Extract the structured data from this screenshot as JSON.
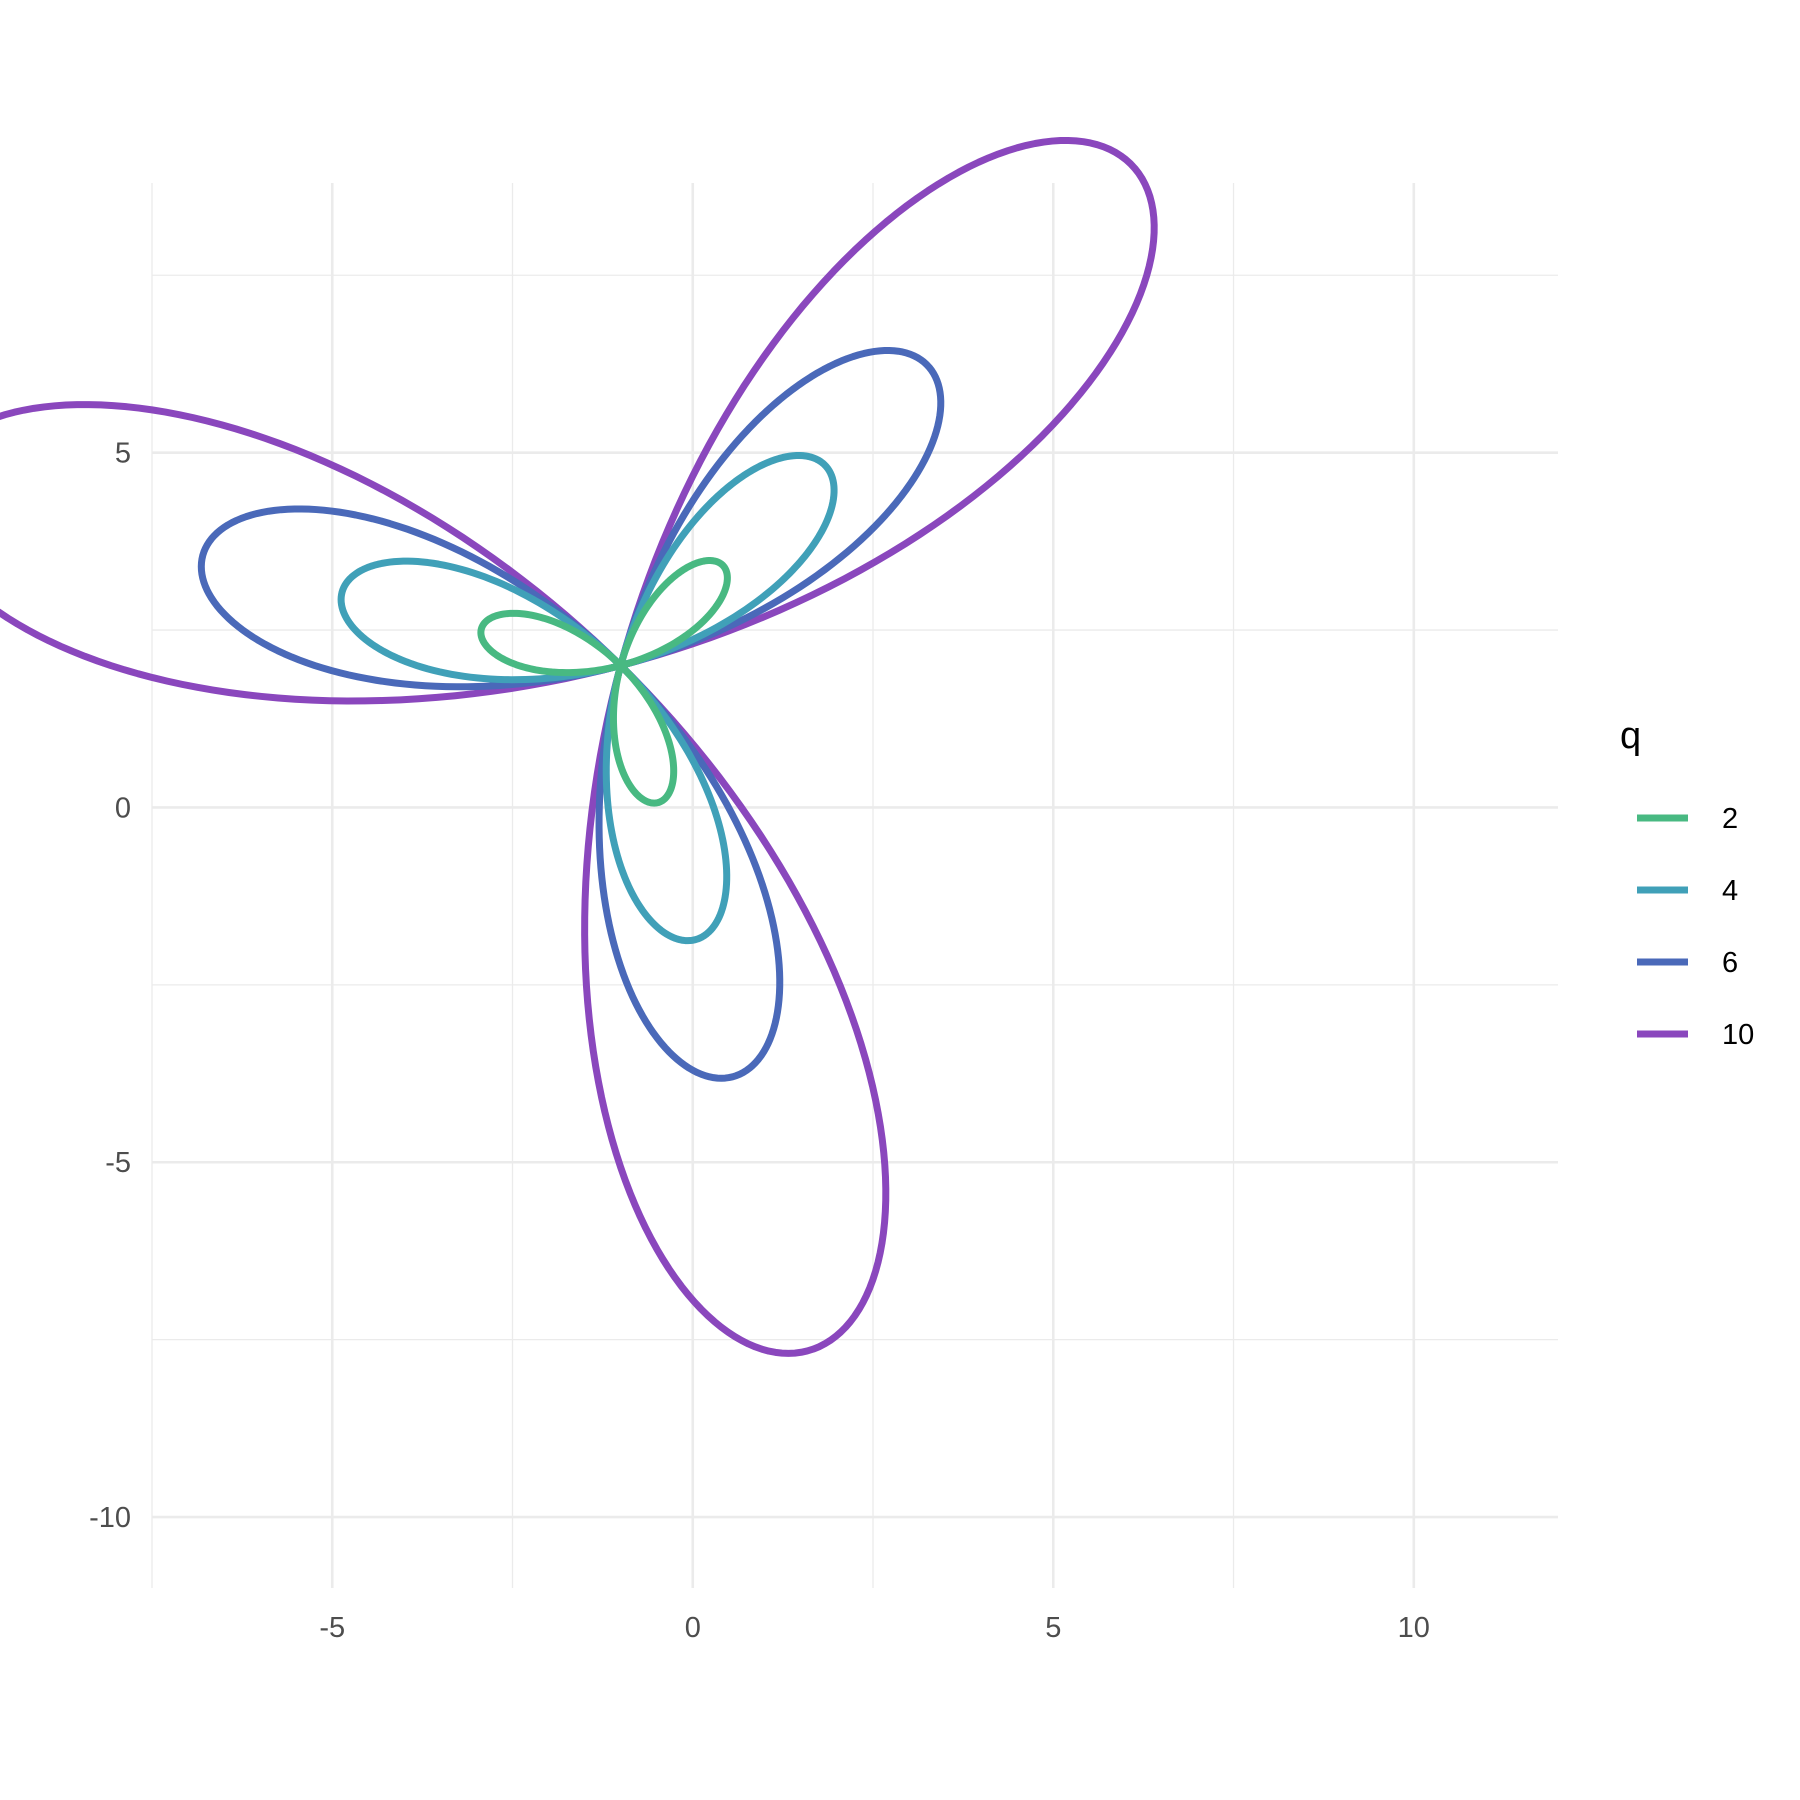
{
  "chart_data": {
    "type": "line",
    "title": "",
    "xlabel": "",
    "ylabel": "",
    "xlim": [
      -7.5,
      12
    ],
    "ylim": [
      -11,
      8.8
    ],
    "x_ticks": [
      -5,
      0,
      5,
      10
    ],
    "x_tick_labels": [
      "-5",
      "0",
      "5",
      "10"
    ],
    "y_ticks": [
      5,
      0,
      -5,
      -10
    ],
    "y_tick_labels": [
      "5",
      "0",
      "-5",
      "-10"
    ],
    "grid": true,
    "legend": {
      "title": "q",
      "placement": "right",
      "entries": [
        "2",
        "4",
        "6",
        "10"
      ]
    },
    "curve_family": "three-petal rose r = q·sin(3θ), θ from 0 to π, rotated so each curve passes through the common point",
    "center": [
      -1,
      2
    ],
    "rotation_degrees": 15,
    "samples_per_curve": 361,
    "series": [
      {
        "name": "2",
        "q": 2,
        "color": "#48b982"
      },
      {
        "name": "4",
        "q": 4,
        "color": "#40a0b8"
      },
      {
        "name": "6",
        "q": 6,
        "color": "#4a69b9"
      },
      {
        "name": "10",
        "q": 10,
        "color": "#8a47bd"
      }
    ]
  }
}
